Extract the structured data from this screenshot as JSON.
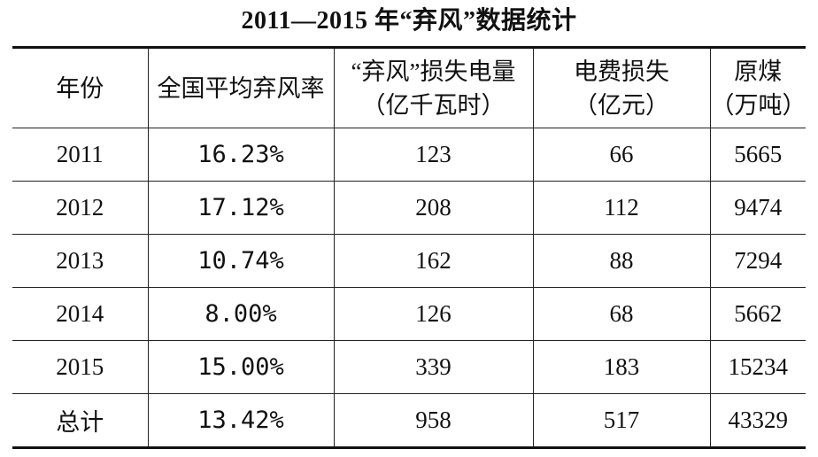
{
  "title": "2011—2015 年“弃风”数据统计",
  "table": {
    "headers": [
      [
        "年份"
      ],
      [
        "全国平均弃风率"
      ],
      [
        "“弃风”损失电量",
        "（亿千瓦时）"
      ],
      [
        "电费损失",
        "（亿元）"
      ],
      [
        "原煤",
        "（万吨）"
      ]
    ],
    "rows": [
      [
        "2011",
        "16.23%",
        "123",
        "66",
        "5665"
      ],
      [
        "2012",
        "17.12%",
        "208",
        "112",
        "9474"
      ],
      [
        "2013",
        "10.74%",
        "162",
        "88",
        "7294"
      ],
      [
        "2014",
        "8.00%",
        "126",
        "68",
        "5662"
      ],
      [
        "2015",
        "15.00%",
        "339",
        "183",
        "15234"
      ],
      [
        "总计",
        "13.42%",
        "958",
        "517",
        "43329"
      ]
    ]
  }
}
